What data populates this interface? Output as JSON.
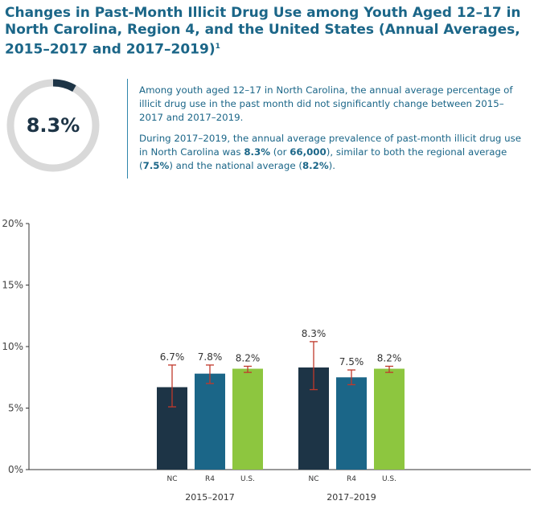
{
  "header": {
    "title": "Changes in Past-Month Illicit Drug Use among Youth Aged 12–17 in North Carolina, Region 4, and the United States (Annual Averages, 2015–2017 and 2017–2019)",
    "footnote_marker": "1"
  },
  "stat": {
    "value": "8.3%",
    "fraction": 0.083,
    "ring_color": "#d9d9d9",
    "fill_color": "#1d3446"
  },
  "summary": {
    "p1": "Among youth aged 12–17 in North Carolina, the annual average percentage of illicit drug use in the past month did not significantly change between 2015–2017 and 2017–2019.",
    "p2_a": "During 2017–2019, the annual average prevalence of past-month illicit drug use in North Carolina was ",
    "p2_b": "8.3%",
    "p2_c": " (or ",
    "p2_d": "66,000",
    "p2_e": "), similar to both the regional average (",
    "p2_f": "7.5%",
    "p2_g": ") and the national average (",
    "p2_h": "8.2%",
    "p2_i": ")."
  },
  "chart_data": {
    "type": "bar",
    "groups": [
      "2015–2017",
      "2017–2019"
    ],
    "categories": [
      "NC",
      "R4",
      "U.S."
    ],
    "series": [
      {
        "group": "2015–2017",
        "values": [
          6.7,
          7.8,
          8.2
        ],
        "labels": [
          "6.7%",
          "7.8%",
          "8.2%"
        ],
        "error_low": [
          5.1,
          7.0,
          7.9
        ],
        "error_high": [
          8.5,
          8.5,
          8.4
        ]
      },
      {
        "group": "2017–2019",
        "values": [
          8.3,
          7.5,
          8.2
        ],
        "labels": [
          "8.3%",
          "7.5%",
          "8.2%"
        ],
        "error_low": [
          6.5,
          6.9,
          7.9
        ],
        "error_high": [
          10.4,
          8.1,
          8.4
        ]
      }
    ],
    "ylim": [
      0,
      20
    ],
    "yticks": [
      0,
      5,
      10,
      15,
      20
    ],
    "ytick_labels": [
      "0%",
      "5%",
      "10%",
      "15%",
      "20%"
    ],
    "colors": [
      "#1d3446",
      "#1b6688",
      "#8dc63f"
    ],
    "error_color": "#c0392b",
    "grid": false
  }
}
